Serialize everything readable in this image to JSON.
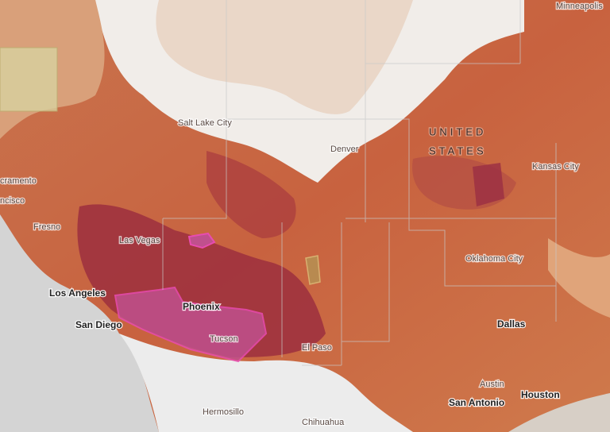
{
  "map": {
    "labels": [
      {
        "text": "Minneapolis"
      },
      {
        "text": "Salt Lake City"
      },
      {
        "text": "Denver"
      },
      {
        "text": "UNITED"
      },
      {
        "text": "STATES"
      },
      {
        "text": "Kansas City"
      },
      {
        "text": "cramento"
      },
      {
        "text": "ncisco"
      },
      {
        "text": "Fresno"
      },
      {
        "text": "Las Vegas"
      },
      {
        "text": "Oklahoma City"
      },
      {
        "text": "Los Angeles"
      },
      {
        "text": "Phoenix"
      },
      {
        "text": "San Diego"
      },
      {
        "text": "Tucson"
      },
      {
        "text": "El Paso"
      },
      {
        "text": "Dallas"
      },
      {
        "text": "Austin"
      },
      {
        "text": "Houston"
      },
      {
        "text": "San Antonio"
      },
      {
        "text": "Hermosillo"
      },
      {
        "text": "Chihuahua"
      }
    ]
  }
}
